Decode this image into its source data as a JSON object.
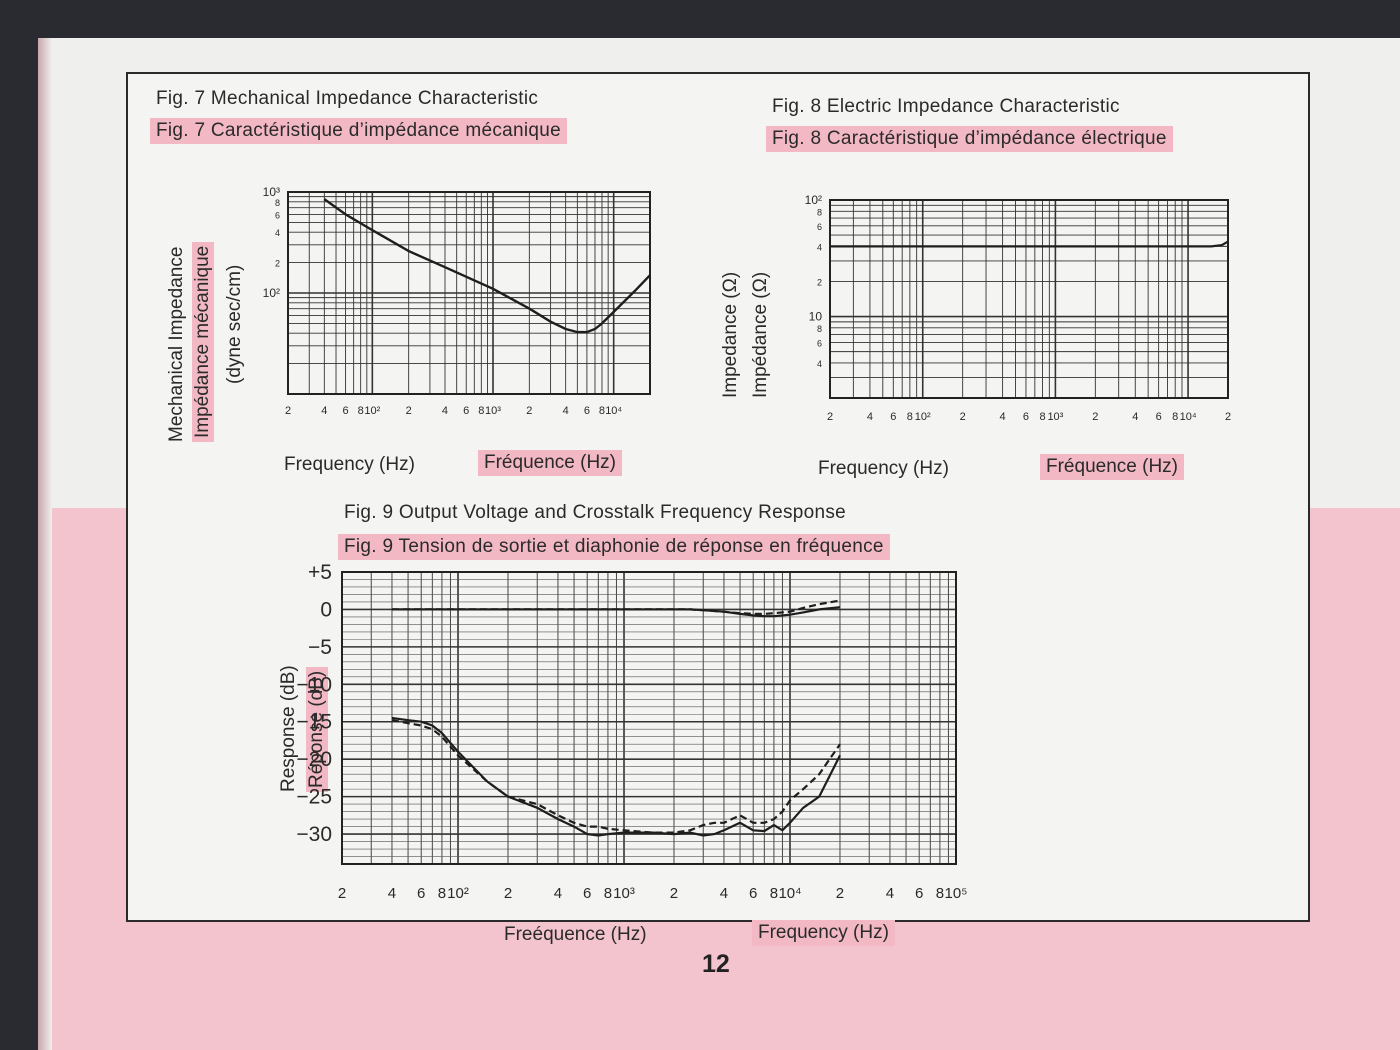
{
  "page_number": "12",
  "colors": {
    "highlight": "#f2b8c4",
    "band": "#f3c4cd",
    "ink": "#2a2a2a"
  },
  "chart_data": [
    {
      "type": "line",
      "title": "Fig. 7  Mechanical Impedance Characteristic",
      "subtitle": "Fig. 7  Caractéristique d’impédance mécanique",
      "xlabel": "Frequency (Hz)",
      "xlabel_fr": "Fréquence (Hz)",
      "ylabel": "Mechanical Impedance",
      "ylabel_fr": "Impédance mécanique",
      "yunit": "(dyne sec/cm)",
      "xscale": "log",
      "yscale": "log",
      "xlim": [
        20,
        20000
      ],
      "ylim": [
        10,
        1000
      ],
      "x_ticks": [
        "2",
        "4",
        "6",
        "8",
        "10²",
        "2",
        "4",
        "6",
        "8",
        "10³",
        "2",
        "4",
        "6",
        "8",
        "10⁴"
      ],
      "y_ticks": [
        "10³",
        "8",
        "6",
        "4",
        "2",
        "10²"
      ],
      "series": [
        {
          "x": [
            40,
            60,
            100,
            200,
            400,
            1000,
            2000,
            3000,
            4000,
            5000,
            6000,
            7000,
            8000,
            10000,
            15000,
            20000
          ],
          "y": [
            850,
            600,
            420,
            260,
            180,
            110,
            70,
            52,
            44,
            41,
            41,
            44,
            50,
            65,
            105,
            150
          ]
        }
      ]
    },
    {
      "type": "line",
      "title": "Fig. 8  Electric Impedance Characteristic",
      "subtitle": "Fig. 8  Caractéristique d’impédance électrique",
      "xlabel": "Frequency (Hz)",
      "xlabel_fr": "Fréquence (Hz)",
      "ylabel": "Impedance (Ω)",
      "ylabel_fr": "Impédance (Ω)",
      "xscale": "log",
      "yscale": "log",
      "xlim": [
        20,
        20000
      ],
      "ylim": [
        2,
        100
      ],
      "x_ticks": [
        "2",
        "4",
        "6",
        "8",
        "10²",
        "2",
        "4",
        "6",
        "8",
        "10³",
        "2",
        "4",
        "6",
        "8",
        "10⁴",
        "2"
      ],
      "y_ticks": [
        "10²",
        "8",
        "6",
        "4",
        "2",
        "10",
        "8",
        "6",
        "4"
      ],
      "series": [
        {
          "x": [
            20,
            100,
            1000,
            5000,
            10000,
            15000,
            18000,
            20000
          ],
          "y": [
            40,
            40,
            40,
            40,
            40,
            40,
            41,
            44
          ]
        }
      ]
    },
    {
      "type": "line",
      "title": "Fig. 9  Output Voltage and Crosstalk Frequency Response",
      "subtitle": "Fig. 9  Tension de sortie et diaphonie de réponse en fréquence",
      "xlabel": "Frequency (Hz)",
      "xlabel_fr": "Freéquence (Hz)",
      "ylabel": "Response (dB)",
      "ylabel_fr": "Réponse (dB)",
      "xscale": "log",
      "xlim": [
        20,
        100000
      ],
      "ylim": [
        -34,
        5
      ],
      "x_ticks": [
        "2",
        "4",
        "6",
        "8",
        "10²",
        "2",
        "4",
        "6",
        "8",
        "10³",
        "2",
        "4",
        "6",
        "8",
        "10⁴",
        "2",
        "4",
        "6",
        "8",
        "10⁵"
      ],
      "y_ticks": [
        "+5",
        "0",
        "−5",
        "−10",
        "−15",
        "−20",
        "−25",
        "−30"
      ],
      "series": [
        {
          "style": "solid",
          "x": [
            40,
            50,
            60,
            80,
            100,
            200,
            400,
            600,
            800,
            1000,
            1500,
            2000,
            2500,
            3000,
            4000,
            5000,
            6000,
            7000,
            8000,
            10000,
            12000,
            15000,
            20000
          ],
          "y": [
            0,
            0,
            0,
            0,
            0,
            0,
            0,
            0,
            0,
            0,
            0,
            0,
            0,
            -0.1,
            -0.3,
            -0.6,
            -0.8,
            -0.9,
            -0.9,
            -0.7,
            -0.4,
            0,
            0.3
          ]
        },
        {
          "style": "dashed",
          "x": [
            40,
            50,
            60,
            80,
            100,
            200,
            400,
            600,
            800,
            1000,
            1500,
            2000,
            2500,
            3000,
            4000,
            5000,
            6000,
            7000,
            8000,
            10000,
            12000,
            15000,
            20000
          ],
          "y": [
            0,
            0,
            0,
            0,
            0,
            0,
            0,
            0,
            0,
            0,
            0,
            0,
            0,
            -0.1,
            -0.3,
            -0.5,
            -0.6,
            -0.6,
            -0.5,
            -0.3,
            0.2,
            0.7,
            1.2
          ]
        },
        {
          "style": "solid",
          "x": [
            40,
            50,
            60,
            70,
            80,
            100,
            150,
            200,
            300,
            400,
            500,
            600,
            700,
            800,
            1000,
            1500,
            2000,
            2500,
            3000,
            3500,
            4000,
            5000,
            6000,
            7000,
            8000,
            9000,
            10000,
            12000,
            15000,
            20000
          ],
          "y": [
            -14.5,
            -14.8,
            -15,
            -15.5,
            -16.5,
            -19,
            -23,
            -25,
            -26.5,
            -28,
            -29,
            -30,
            -30.2,
            -30,
            -29.8,
            -29.8,
            -30,
            -29.8,
            -30.2,
            -30,
            -29.5,
            -28.5,
            -29.5,
            -29.6,
            -28.8,
            -29.5,
            -28.5,
            -26.5,
            -25,
            -19.5
          ]
        },
        {
          "style": "dashed",
          "x": [
            40,
            50,
            60,
            70,
            80,
            100,
            150,
            200,
            300,
            400,
            500,
            600,
            700,
            800,
            1000,
            1500,
            2000,
            2500,
            3000,
            3500,
            4000,
            5000,
            6000,
            7000,
            8000,
            9000,
            10000,
            12000,
            15000,
            20000
          ],
          "y": [
            -14.8,
            -15.2,
            -15.5,
            -16,
            -17,
            -19.5,
            -23,
            -25,
            -26,
            -27.5,
            -28.5,
            -29,
            -29,
            -29.3,
            -29.5,
            -29.8,
            -29.8,
            -29.5,
            -28.8,
            -28.5,
            -28.5,
            -27.5,
            -28.5,
            -28.5,
            -28,
            -27,
            -25.5,
            -24,
            -22,
            -18
          ]
        }
      ]
    }
  ]
}
